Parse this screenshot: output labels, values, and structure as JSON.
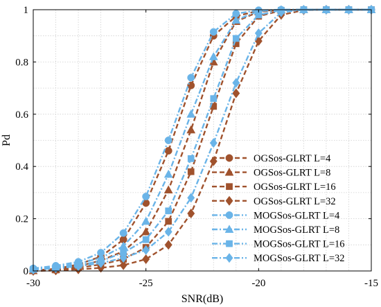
{
  "chart_data": {
    "type": "line",
    "title": "",
    "xlabel": "SNR(dB)",
    "ylabel": "Pd",
    "xlim": [
      -30,
      -15
    ],
    "ylim": [
      0,
      1
    ],
    "xticks": [
      -30,
      -25,
      -20,
      -15
    ],
    "yticks": [
      0,
      0.2,
      0.4,
      0.6,
      0.8,
      1
    ],
    "xtick_labels": [
      "-30",
      "-25",
      "-20",
      "-15"
    ],
    "ytick_labels": [
      "0",
      "0.2",
      "0.4",
      "0.6",
      "0.8",
      "1"
    ],
    "grid": true,
    "legend_position": "bottom-right",
    "x": [
      -30,
      -29,
      -28,
      -27,
      -26,
      -25,
      -24,
      -23,
      -22,
      -21,
      -20,
      -19,
      -18,
      -17,
      -16,
      -15
    ],
    "series": [
      {
        "name": "OGSos-GLRT L=4",
        "marker": "circle",
        "color": "#a0522d",
        "dash": "dashed",
        "values": [
          0.002,
          0.008,
          0.025,
          0.055,
          0.12,
          0.26,
          0.46,
          0.71,
          0.9,
          0.975,
          0.996,
          0.999,
          1.0,
          1.0,
          1.0,
          1.0
        ]
      },
      {
        "name": "OGSos-GLRT L=8",
        "marker": "triangle",
        "color": "#a0522d",
        "dash": "dashed",
        "values": [
          0.001,
          0.005,
          0.018,
          0.04,
          0.075,
          0.15,
          0.31,
          0.54,
          0.8,
          0.955,
          0.992,
          0.999,
          1.0,
          1.0,
          1.0,
          1.0
        ]
      },
      {
        "name": "OGSos-GLRT L=16",
        "marker": "square",
        "color": "#a0522d",
        "dash": "dashed",
        "values": [
          0.001,
          0.004,
          0.012,
          0.025,
          0.045,
          0.09,
          0.19,
          0.38,
          0.63,
          0.87,
          0.975,
          0.997,
          1.0,
          1.0,
          1.0,
          1.0
        ]
      },
      {
        "name": "OGSos-GLRT L=32",
        "marker": "diamond",
        "color": "#a0522d",
        "dash": "dashed",
        "values": [
          0.0,
          0.002,
          0.006,
          0.012,
          0.022,
          0.045,
          0.1,
          0.22,
          0.42,
          0.68,
          0.88,
          0.98,
          0.998,
          1.0,
          1.0,
          1.0
        ]
      },
      {
        "name": "MOGSos-GLRT L=4",
        "marker": "circle",
        "color": "#6ab4e8",
        "dash": "dashdot",
        "values": [
          0.01,
          0.02,
          0.035,
          0.07,
          0.145,
          0.285,
          0.5,
          0.74,
          0.915,
          0.985,
          0.998,
          1.0,
          1.0,
          1.0,
          1.0,
          1.0
        ]
      },
      {
        "name": "MOGSos-GLRT L=8",
        "marker": "triangle",
        "color": "#6ab4e8",
        "dash": "dashdot",
        "values": [
          0.008,
          0.015,
          0.028,
          0.05,
          0.095,
          0.19,
          0.37,
          0.6,
          0.82,
          0.96,
          0.995,
          1.0,
          1.0,
          1.0,
          1.0,
          1.0
        ]
      },
      {
        "name": "MOGSos-GLRT L=16",
        "marker": "square",
        "color": "#6ab4e8",
        "dash": "dashdot",
        "values": [
          0.006,
          0.012,
          0.022,
          0.038,
          0.07,
          0.12,
          0.23,
          0.43,
          0.66,
          0.89,
          0.98,
          0.998,
          1.0,
          1.0,
          1.0,
          1.0
        ]
      },
      {
        "name": "MOGSos-GLRT L=32",
        "marker": "diamond",
        "color": "#6ab4e8",
        "dash": "dashdot",
        "values": [
          0.005,
          0.01,
          0.018,
          0.03,
          0.05,
          0.08,
          0.15,
          0.28,
          0.49,
          0.72,
          0.91,
          0.99,
          1.0,
          1.0,
          1.0,
          1.0
        ]
      }
    ]
  }
}
